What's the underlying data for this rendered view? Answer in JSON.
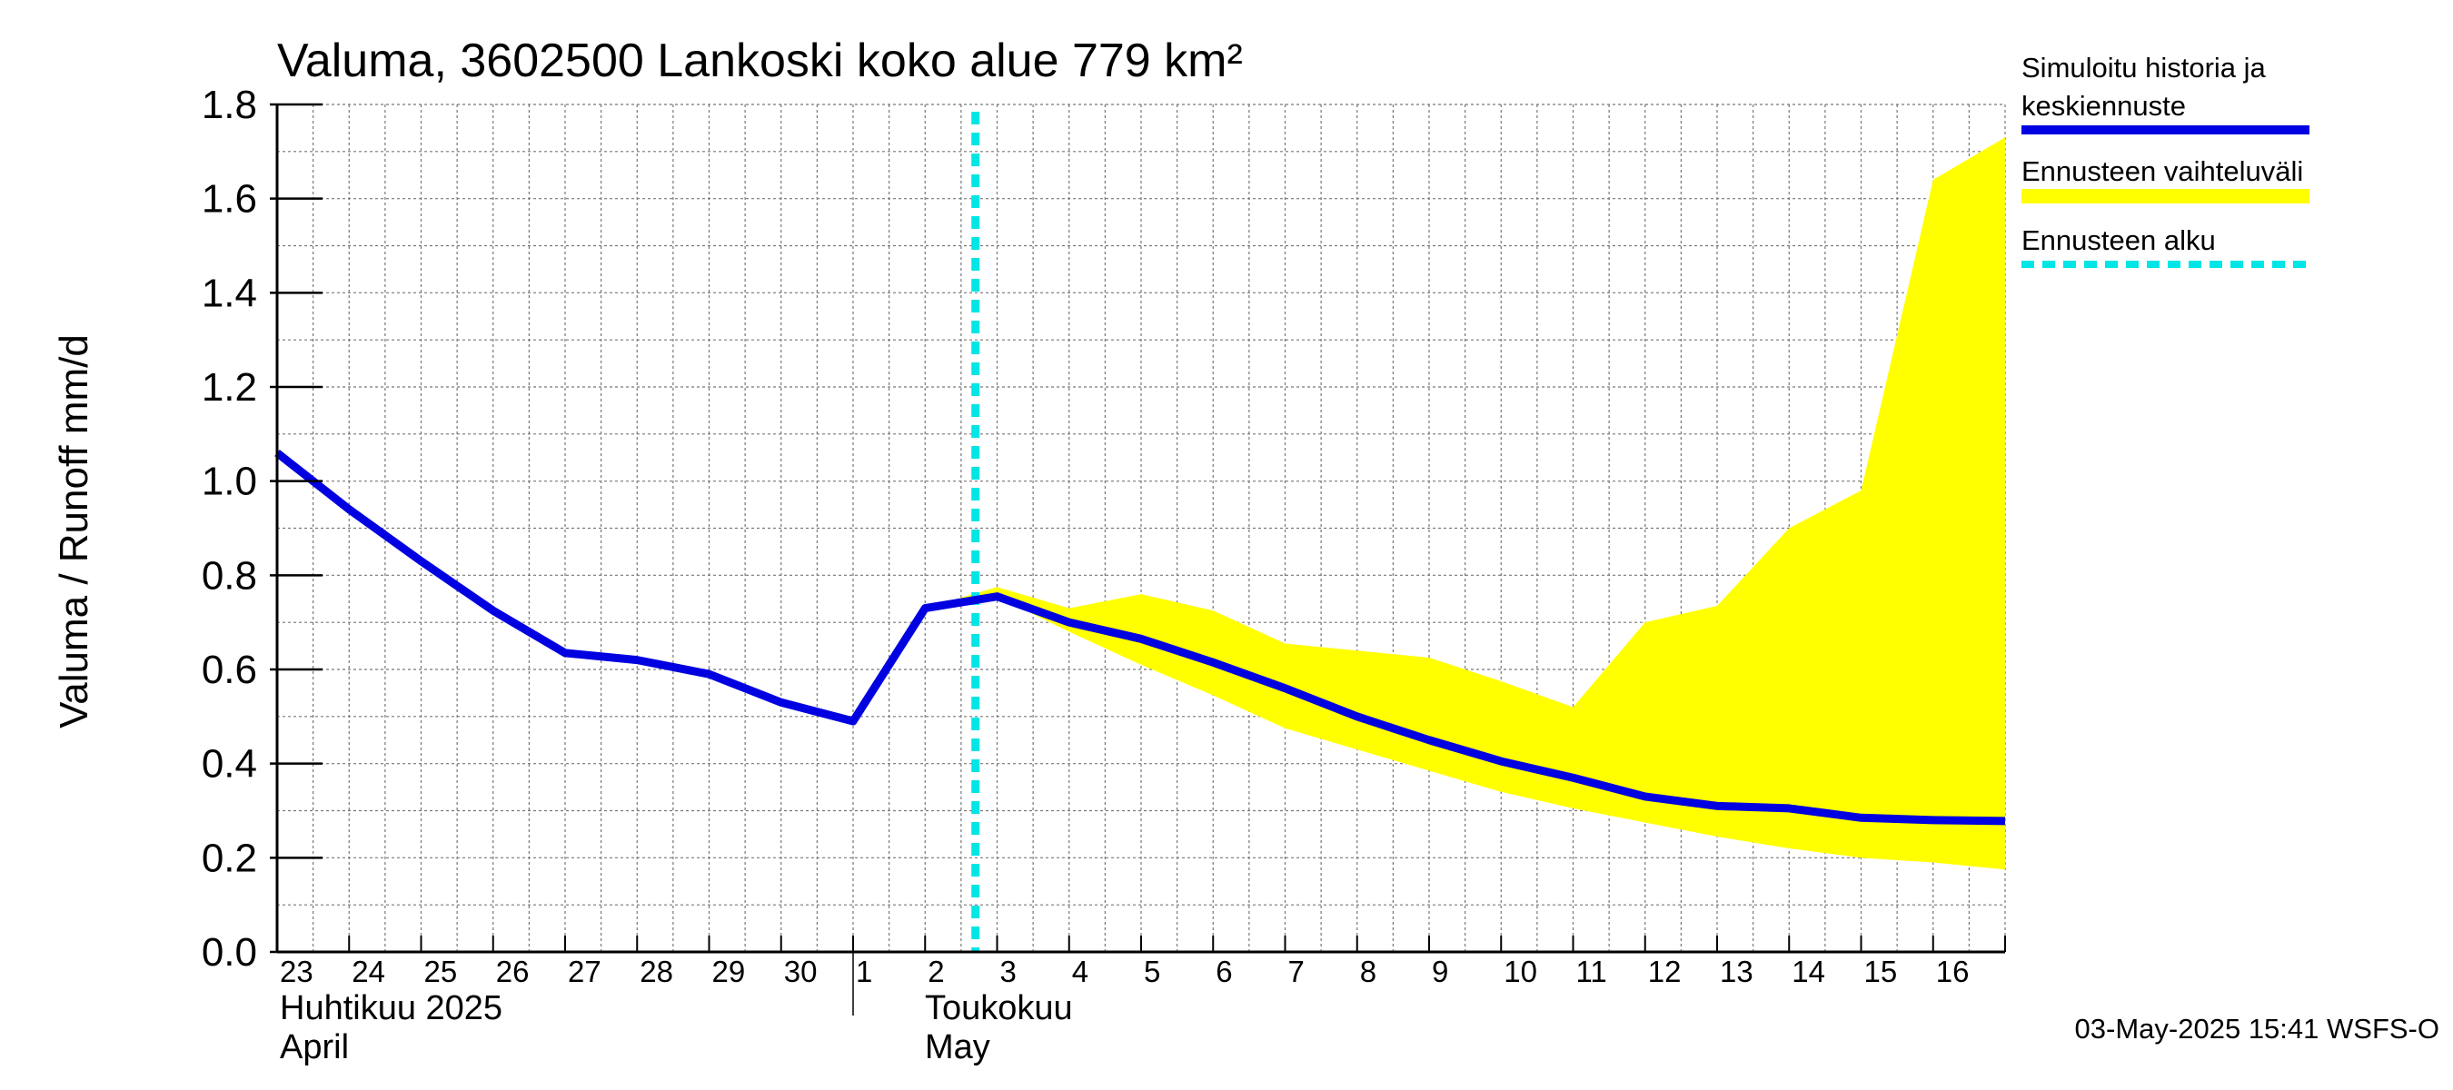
{
  "chart_data": {
    "type": "line",
    "title": "Valuma, 3602500 Lankoski koko alue 779 km²",
    "ylabel": "Valuma / Runoff    mm/d",
    "ylim": [
      0,
      1.8
    ],
    "yticks": [
      "0.0",
      "0.2",
      "0.4",
      "0.6",
      "0.8",
      "1.0",
      "1.2",
      "1.4",
      "1.6",
      "1.8"
    ],
    "grid": true,
    "legend_position": "right",
    "x_day_labels": [
      "23",
      "24",
      "25",
      "26",
      "27",
      "28",
      "29",
      "30",
      "1",
      "2",
      "3",
      "4",
      "5",
      "6",
      "7",
      "8",
      "9",
      "10",
      "11",
      "12",
      "13",
      "14",
      "15",
      "16"
    ],
    "month_labels": [
      {
        "line1": "Huhtikuu  2025",
        "line2": "April"
      },
      {
        "line1": "Toukokuu",
        "line2": "May"
      }
    ],
    "forecast_start": "2025-05-03",
    "series": [
      {
        "name": "Simuloitu historia ja keskiennuste",
        "color": "#0000e0",
        "x": [
          "2025-04-23",
          "2025-04-24",
          "2025-04-25",
          "2025-04-26",
          "2025-04-27",
          "2025-04-28",
          "2025-04-29",
          "2025-04-30",
          "2025-05-01",
          "2025-05-02",
          "2025-05-03",
          "2025-05-04",
          "2025-05-05",
          "2025-05-06",
          "2025-05-07",
          "2025-05-08",
          "2025-05-09",
          "2025-05-10",
          "2025-05-11",
          "2025-05-12",
          "2025-05-13",
          "2025-05-14",
          "2025-05-15",
          "2025-05-16",
          "2025-05-17"
        ],
        "values": [
          1.06,
          0.94,
          0.83,
          0.725,
          0.635,
          0.62,
          0.59,
          0.53,
          0.49,
          0.73,
          0.755,
          0.7,
          0.665,
          0.615,
          0.56,
          0.5,
          0.45,
          0.405,
          0.37,
          0.33,
          0.31,
          0.305,
          0.285,
          0.28,
          0.278
        ]
      },
      {
        "name": "Ennusteen vaihteluväli",
        "color": "#ffff00",
        "x": [
          "2025-05-02",
          "2025-05-03",
          "2025-05-04",
          "2025-05-05",
          "2025-05-06",
          "2025-05-07",
          "2025-05-08",
          "2025-05-09",
          "2025-05-10",
          "2025-05-11",
          "2025-05-12",
          "2025-05-13",
          "2025-05-14",
          "2025-05-15",
          "2025-05-16",
          "2025-05-17"
        ],
        "upper": [
          0.73,
          0.775,
          0.73,
          0.76,
          0.725,
          0.655,
          0.64,
          0.625,
          0.575,
          0.52,
          0.7,
          0.735,
          0.9,
          0.98,
          1.64,
          1.73
        ],
        "lower": [
          0.73,
          0.755,
          0.68,
          0.61,
          0.545,
          0.475,
          0.43,
          0.385,
          0.34,
          0.305,
          0.275,
          0.245,
          0.22,
          0.2,
          0.19,
          0.175
        ]
      },
      {
        "name": "Ennusteen alku",
        "color": "#00e5e5"
      }
    ]
  },
  "footer": "03-May-2025 15:41 WSFS-O"
}
